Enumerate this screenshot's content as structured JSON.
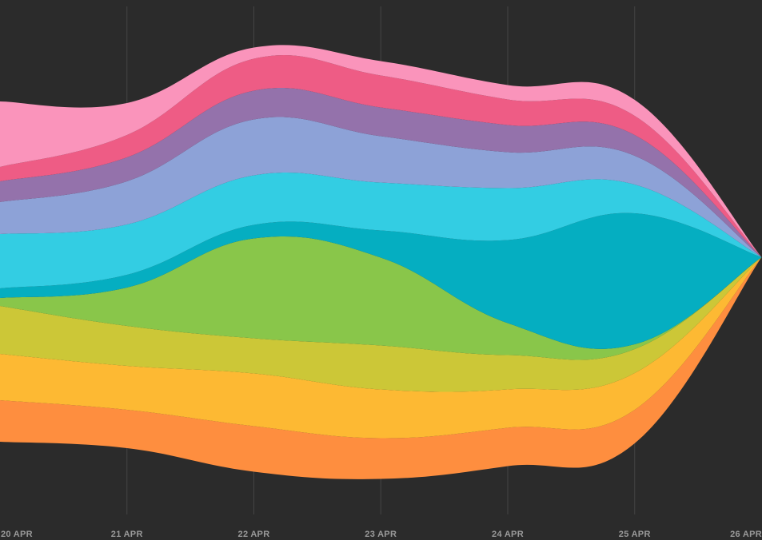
{
  "chart_data": {
    "type": "area",
    "subtype": "streamgraph",
    "x": [
      "20 APR",
      "21 APR",
      "22 APR",
      "23 APR",
      "24 APR",
      "25 APR",
      "26 APR"
    ],
    "grid": "vertical",
    "background": "#2b2b2b",
    "series": [
      {
        "color": "#fe8e3f",
        "values": [
          52,
          48,
          57,
          51,
          48,
          42,
          0
        ]
      },
      {
        "color": "#fdb933",
        "values": [
          58,
          55,
          66,
          61,
          48,
          46,
          0
        ]
      },
      {
        "color": "#ccc737",
        "values": [
          60,
          50,
          44,
          55,
          43,
          30,
          0
        ]
      },
      {
        "color": "#89c64a",
        "values": [
          10,
          48,
          125,
          110,
          40,
          6,
          0
        ]
      },
      {
        "color": "#05aec1",
        "values": [
          12,
          16,
          17,
          34,
          104,
          164,
          0
        ]
      },
      {
        "color": "#33cde3",
        "values": [
          68,
          63,
          62,
          60,
          65,
          36,
          0
        ]
      },
      {
        "color": "#8da2d7",
        "values": [
          40,
          54,
          70,
          58,
          45,
          36,
          0
        ]
      },
      {
        "color": "#9472ab",
        "values": [
          26,
          30,
          36,
          36,
          34,
          26,
          0
        ]
      },
      {
        "color": "#ee5c85",
        "values": [
          18,
          28,
          40,
          40,
          32,
          24,
          0
        ]
      },
      {
        "color": "#fa94bb",
        "values": [
          82,
          40,
          14,
          18,
          18,
          20,
          0
        ]
      }
    ]
  }
}
